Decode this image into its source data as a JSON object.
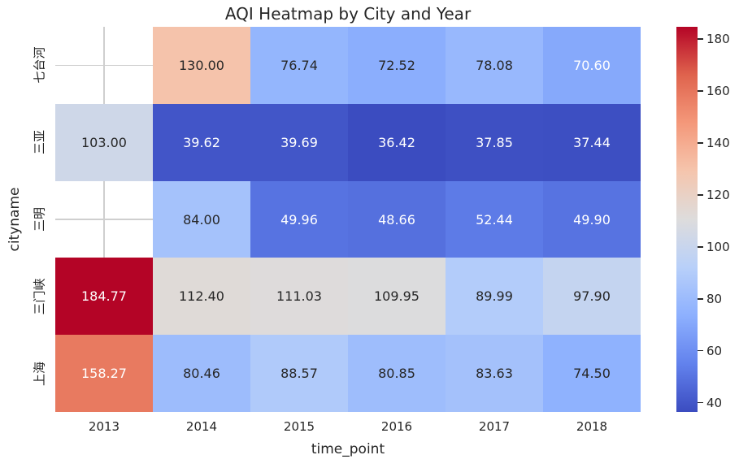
{
  "figure": {
    "background": "#ffffff",
    "text_color": "#262626",
    "grid_color": "#cfcfcf",
    "annot_dark_color": "#262626",
    "annot_light_color": "#ffffff"
  },
  "chart_data": {
    "type": "heatmap",
    "title": "AQI Heatmap by City and Year",
    "xlabel": "time_point",
    "ylabel": "cityname",
    "columns": [
      "2013",
      "2014",
      "2015",
      "2016",
      "2017",
      "2018"
    ],
    "rows": [
      "七台河",
      "三亚",
      "三明",
      "三门峡",
      "上海"
    ],
    "values": [
      [
        null,
        130.0,
        76.74,
        72.52,
        78.08,
        70.6
      ],
      [
        103.0,
        39.62,
        39.69,
        36.42,
        37.85,
        37.44
      ],
      [
        null,
        84.0,
        49.96,
        48.66,
        52.44,
        49.9
      ],
      [
        184.77,
        112.4,
        111.03,
        109.95,
        89.99,
        97.9
      ],
      [
        158.27,
        80.46,
        88.57,
        80.85,
        83.63,
        74.5
      ]
    ],
    "value_decimals": 2,
    "colormap": "coolwarm",
    "vmin": 36.42,
    "vmax": 184.77,
    "colorbar_ticks": [
      40,
      60,
      80,
      100,
      120,
      140,
      160,
      180
    ],
    "colorbar_position": "right",
    "grid": "visible-behind-missing-cells",
    "missing_cells": [
      [
        0,
        0
      ],
      [
        2,
        0
      ]
    ]
  }
}
